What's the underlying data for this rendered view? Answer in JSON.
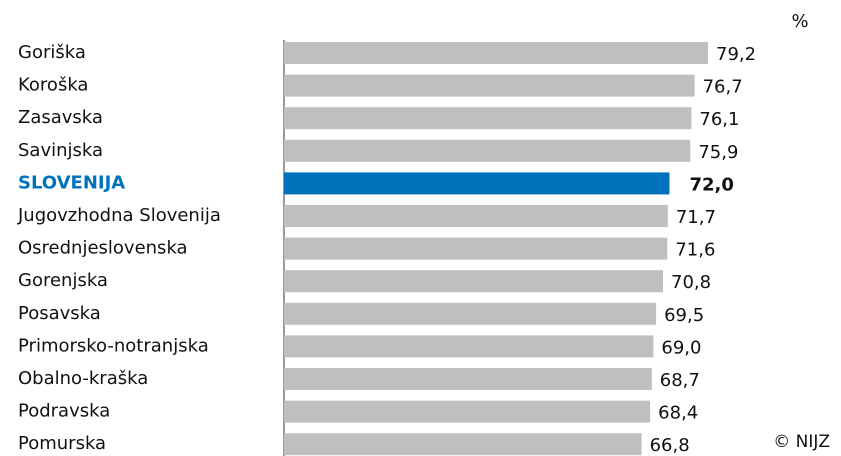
{
  "chart_data": {
    "type": "bar",
    "orientation": "horizontal",
    "unit": "%",
    "credit": "© NIJZ",
    "categories": [
      "Goriška",
      "Koroška",
      "Zasavska",
      "Savinjska",
      "SLOVENIJA",
      "Jugovzhodna Slovenija",
      "Osrednjeslovenska",
      "Gorenjska",
      "Posavska",
      "Primorsko-notranjska",
      "Obalno-kraška",
      "Podravska",
      "Pomurska"
    ],
    "values": [
      79.2,
      76.7,
      76.1,
      75.9,
      72.0,
      71.7,
      71.6,
      70.8,
      69.5,
      69.0,
      68.7,
      68.4,
      66.8
    ],
    "value_labels": [
      "79,2",
      "76,7",
      "76,1",
      "75,9",
      "72,0",
      "71,7",
      "71,6",
      "70,8",
      "69,5",
      "69,0",
      "68,7",
      "68,4",
      "66,8"
    ],
    "color": "#bfbfbf",
    "highlight_color": "#0072bc",
    "highlight": [
      false,
      false,
      false,
      false,
      true,
      false,
      false,
      false,
      false,
      false,
      false,
      false,
      false
    ]
  }
}
